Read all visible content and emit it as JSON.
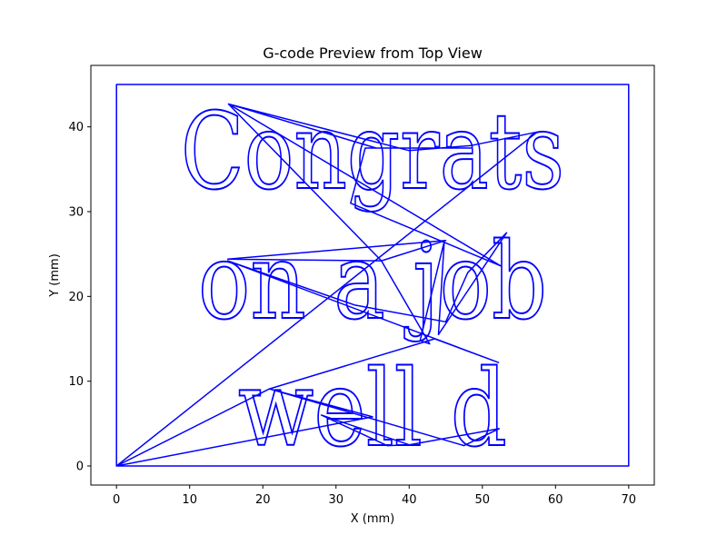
{
  "chart_data": {
    "type": "line",
    "title": "G-code Preview from Top View",
    "xlabel": "X (mm)",
    "ylabel": "Y (mm)",
    "xlim": [
      -3.5,
      73.5
    ],
    "ylim": [
      -2.25,
      47.25
    ],
    "xticks": [
      0,
      10,
      20,
      30,
      40,
      50,
      60,
      70
    ],
    "yticks": [
      0,
      10,
      20,
      30,
      40
    ],
    "grid": false,
    "line_color": "#0000ff",
    "engraved_text_lines": [
      "Congrats",
      "on a job",
      "well d"
    ],
    "series": [
      {
        "points": [
          [
            0,
            0
          ],
          [
            70,
            0
          ],
          [
            70,
            45
          ],
          [
            0,
            45
          ],
          [
            0,
            0
          ],
          [
            57.5,
            39.4
          ],
          [
            48.5,
            37.8
          ],
          [
            40,
            37.2
          ],
          [
            15.3,
            42.7
          ],
          [
            35.5,
            37.5
          ],
          [
            48.5,
            37.5
          ],
          [
            34,
            37.5
          ],
          [
            32,
            31
          ],
          [
            52.5,
            23.6
          ],
          [
            15.3,
            42.7
          ],
          [
            36.2,
            24.2
          ],
          [
            15.2,
            24.4
          ],
          [
            45,
            26.6
          ],
          [
            36.2,
            24.2
          ],
          [
            42.8,
            14.4
          ],
          [
            41.5,
            14.8
          ],
          [
            44.8,
            26.5
          ],
          [
            44,
            15.5
          ],
          [
            53.3,
            27.5
          ],
          [
            48,
            22.8
          ],
          [
            45,
            17
          ],
          [
            32.5,
            19
          ],
          [
            15.2,
            24.2
          ],
          [
            52.2,
            12.2
          ],
          [
            43.5,
            15
          ],
          [
            20.9,
            9.1
          ],
          [
            0,
            0
          ],
          [
            35,
            5.8
          ],
          [
            20.9,
            9.1
          ],
          [
            47.5,
            2.4
          ],
          [
            52.3,
            4.4
          ],
          [
            40,
            2.5
          ],
          [
            37,
            2.4
          ],
          [
            28,
            6
          ],
          [
            40,
            2.5
          ]
        ]
      }
    ]
  }
}
